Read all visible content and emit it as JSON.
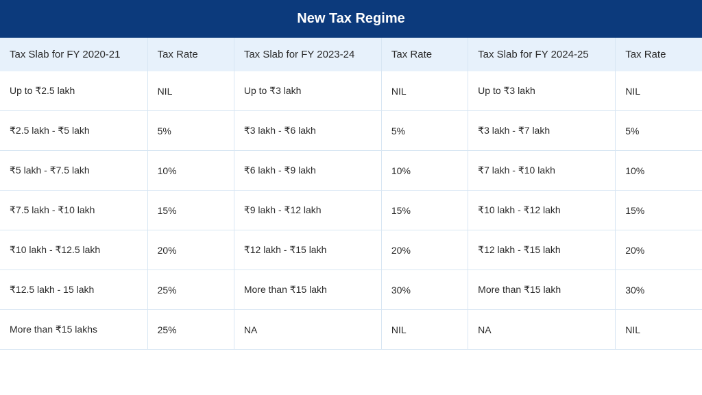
{
  "title": "New Tax Regime",
  "colors": {
    "header_bg": "#0c3a7c",
    "header_text": "#ffffff",
    "thead_bg": "#e7f1fb",
    "cell_bg": "#ffffff",
    "text": "#2a2a2a",
    "border": "#d8e6f3"
  },
  "typography": {
    "title_fontsize": 20,
    "title_weight": 600,
    "header_fontsize": 15,
    "cell_fontsize": 14
  },
  "columns": [
    "Tax Slab for FY 2020-21",
    "Tax Rate",
    "Tax Slab for FY 2023-24",
    "Tax Rate",
    "Tax Slab for FY 2024-25",
    "Tax Rate"
  ],
  "rows": [
    [
      "Up to ₹2.5 lakh",
      "NIL",
      "Up to ₹3 lakh",
      "NIL",
      "Up to ₹3 lakh",
      "NIL"
    ],
    [
      "₹2.5 lakh - ₹5 lakh",
      "5%",
      "₹3 lakh - ₹6 lakh",
      "5%",
      "₹3 lakh - ₹7 lakh",
      "5%"
    ],
    [
      "₹5 lakh - ₹7.5 lakh",
      "10%",
      "₹6 lakh - ₹9 lakh",
      "10%",
      "₹7 lakh - ₹10 lakh",
      "10%"
    ],
    [
      "₹7.5 lakh - ₹10 lakh",
      "15%",
      "₹9 lakh - ₹12 lakh",
      "15%",
      "₹10 lakh - ₹12 lakh",
      "15%"
    ],
    [
      "₹10 lakh - ₹12.5 lakh",
      "20%",
      "₹12 lakh - ₹15 lakh",
      "20%",
      "₹12 lakh - ₹15 lakh",
      "20%"
    ],
    [
      "₹12.5 lakh - 15 lakh",
      "25%",
      "More than ₹15 lakh",
      "30%",
      "More than ₹15 lakh",
      "30%"
    ],
    [
      "More than ₹15 lakhs",
      "25%",
      "NA",
      "NIL",
      "NA",
      "NIL"
    ]
  ]
}
